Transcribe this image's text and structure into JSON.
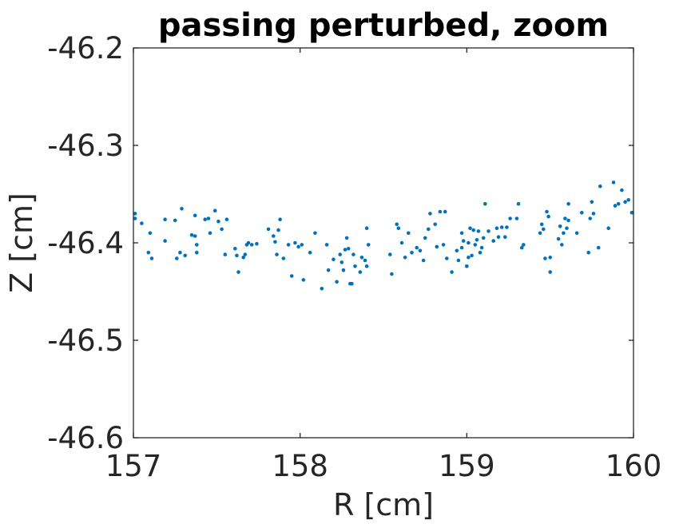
{
  "chart_data": {
    "type": "scatter",
    "title": "passing perturbed, zoom",
    "xlabel": "R [cm]",
    "ylabel": "Z [cm]",
    "xlim": [
      157,
      160
    ],
    "ylim": [
      -46.6,
      -46.2
    ],
    "xticks": [
      157,
      158,
      159,
      160
    ],
    "xtick_labels": [
      "157",
      "158",
      "159",
      "160"
    ],
    "yticks": [
      -46.6,
      -46.5,
      -46.4,
      -46.3,
      -46.2
    ],
    "ytick_labels": [
      "-46.6",
      "-46.5",
      "-46.4",
      "-46.3",
      "-46.2"
    ],
    "grid": false,
    "box": true,
    "marker_color": "#0072BD",
    "axis_color": "#262626",
    "series": [
      {
        "points": [
          [
            157.01,
            -46.375
          ],
          [
            157.01,
            -46.37
          ],
          [
            157.05,
            -46.38
          ],
          [
            157.09,
            -46.41
          ],
          [
            157.1,
            -46.39
          ],
          [
            157.11,
            -46.416
          ],
          [
            157.19,
            -46.376
          ],
          [
            157.19,
            -46.398
          ],
          [
            157.25,
            -46.377
          ],
          [
            157.26,
            -46.416
          ],
          [
            157.28,
            -46.41
          ],
          [
            157.29,
            -46.365
          ],
          [
            157.31,
            -46.413
          ],
          [
            157.35,
            -46.392
          ],
          [
            157.37,
            -46.372
          ],
          [
            157.37,
            -46.393
          ],
          [
            157.38,
            -46.41
          ],
          [
            157.38,
            -46.402
          ],
          [
            157.43,
            -46.376
          ],
          [
            157.45,
            -46.375
          ],
          [
            157.46,
            -46.39
          ],
          [
            157.49,
            -46.367
          ],
          [
            157.51,
            -46.378
          ],
          [
            157.53,
            -46.386
          ],
          [
            157.55,
            -46.412
          ],
          [
            157.56,
            -46.376
          ],
          [
            157.61,
            -46.406
          ],
          [
            157.62,
            -46.413
          ],
          [
            157.63,
            -46.43
          ],
          [
            157.66,
            -46.415
          ],
          [
            157.67,
            -46.412
          ],
          [
            157.68,
            -46.402
          ],
          [
            157.69,
            -46.4
          ],
          [
            157.71,
            -46.402
          ],
          [
            157.74,
            -46.401
          ],
          [
            157.81,
            -46.386
          ],
          [
            157.84,
            -46.393
          ],
          [
            157.85,
            -46.399
          ],
          [
            157.86,
            -46.412
          ],
          [
            157.87,
            -46.387
          ],
          [
            157.88,
            -46.376
          ],
          [
            157.9,
            -46.416
          ],
          [
            157.93,
            -46.402
          ],
          [
            157.95,
            -46.434
          ],
          [
            157.97,
            -46.4
          ],
          [
            157.99,
            -46.404
          ],
          [
            158.01,
            -46.402
          ],
          [
            158.02,
            -46.438
          ],
          [
            158.06,
            -46.41
          ],
          [
            158.09,
            -46.39
          ],
          [
            158.13,
            -46.447
          ],
          [
            158.16,
            -46.402
          ],
          [
            158.17,
            -46.428
          ],
          [
            158.2,
            -46.417
          ],
          [
            158.22,
            -46.44
          ],
          [
            158.24,
            -46.412
          ],
          [
            158.25,
            -46.42
          ],
          [
            158.26,
            -46.428
          ],
          [
            158.27,
            -46.407
          ],
          [
            158.28,
            -46.395
          ],
          [
            158.29,
            -46.406
          ],
          [
            158.3,
            -46.442
          ],
          [
            158.31,
            -46.442
          ],
          [
            158.32,
            -46.412
          ],
          [
            158.33,
            -46.424
          ],
          [
            158.36,
            -46.43
          ],
          [
            158.37,
            -46.415
          ],
          [
            158.39,
            -46.418
          ],
          [
            158.4,
            -46.424
          ],
          [
            158.4,
            -46.385
          ],
          [
            158.41,
            -46.402
          ],
          [
            158.54,
            -46.412
          ],
          [
            158.55,
            -46.432
          ],
          [
            158.58,
            -46.381
          ],
          [
            158.59,
            -46.385
          ],
          [
            158.61,
            -46.4
          ],
          [
            158.63,
            -46.415
          ],
          [
            158.65,
            -46.39
          ],
          [
            158.67,
            -46.41
          ],
          [
            158.7,
            -46.405
          ],
          [
            158.72,
            -46.408
          ],
          [
            158.74,
            -46.418
          ],
          [
            158.75,
            -46.395
          ],
          [
            158.77,
            -46.386
          ],
          [
            158.78,
            -46.37
          ],
          [
            158.81,
            -46.381
          ],
          [
            158.82,
            -46.404
          ],
          [
            158.84,
            -46.368
          ],
          [
            158.86,
            -46.402
          ],
          [
            158.87,
            -46.368
          ],
          [
            158.88,
            -46.416
          ],
          [
            158.91,
            -46.43
          ],
          [
            158.94,
            -46.408
          ],
          [
            158.95,
            -46.418
          ],
          [
            158.97,
            -46.405
          ],
          [
            158.97,
            -46.39
          ],
          [
            158.98,
            -46.398
          ],
          [
            159.0,
            -46.424
          ],
          [
            159.01,
            -46.415
          ],
          [
            159.01,
            -46.4
          ],
          [
            159.02,
            -46.385
          ],
          [
            159.03,
            -46.413
          ],
          [
            159.04,
            -46.387
          ],
          [
            159.05,
            -46.402
          ],
          [
            159.06,
            -46.397
          ],
          [
            159.07,
            -46.388
          ],
          [
            159.08,
            -46.41
          ],
          [
            159.09,
            -46.405
          ],
          [
            159.1,
            -46.395
          ],
          [
            159.11,
            -46.36
          ],
          [
            159.13,
            -46.388
          ],
          [
            159.16,
            -46.398
          ],
          [
            159.18,
            -46.385
          ],
          [
            159.19,
            -46.394
          ],
          [
            159.21,
            -46.384
          ],
          [
            159.23,
            -46.394
          ],
          [
            159.24,
            -46.384
          ],
          [
            159.26,
            -46.375
          ],
          [
            159.3,
            -46.375
          ],
          [
            159.31,
            -46.36
          ],
          [
            159.33,
            -46.405
          ],
          [
            159.34,
            -46.402
          ],
          [
            159.44,
            -46.39
          ],
          [
            159.45,
            -46.381
          ],
          [
            159.46,
            -46.386
          ],
          [
            159.47,
            -46.416
          ],
          [
            159.48,
            -46.368
          ],
          [
            159.49,
            -46.373
          ],
          [
            159.5,
            -46.415
          ],
          [
            159.5,
            -46.43
          ],
          [
            159.55,
            -46.396
          ],
          [
            159.56,
            -46.383
          ],
          [
            159.57,
            -46.402
          ],
          [
            159.58,
            -46.39
          ],
          [
            159.59,
            -46.375
          ],
          [
            159.6,
            -46.385
          ],
          [
            159.61,
            -46.36
          ],
          [
            159.61,
            -46.377
          ],
          [
            159.66,
            -46.39
          ],
          [
            159.69,
            -46.369
          ],
          [
            159.73,
            -46.41
          ],
          [
            159.74,
            -46.375
          ],
          [
            159.75,
            -46.358
          ],
          [
            159.76,
            -46.37
          ],
          [
            159.79,
            -46.405
          ],
          [
            159.8,
            -46.342
          ],
          [
            159.85,
            -46.385
          ],
          [
            159.88,
            -46.338
          ],
          [
            159.89,
            -46.362
          ],
          [
            159.91,
            -46.36
          ],
          [
            159.93,
            -46.346
          ],
          [
            159.95,
            -46.358
          ],
          [
            159.97,
            -46.356
          ],
          [
            159.99,
            -46.369
          ]
        ]
      }
    ]
  }
}
